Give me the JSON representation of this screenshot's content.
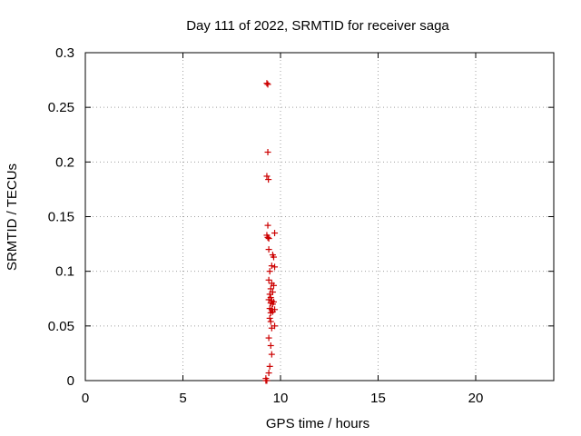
{
  "chart_data": {
    "type": "scatter",
    "title": "Day 111 of 2022, SRMTID for receiver saga",
    "xlabel": "GPS time / hours",
    "ylabel": "SRMTID / TECUs",
    "xlim": [
      0,
      24
    ],
    "ylim": [
      0,
      0.3
    ],
    "xticks": [
      0,
      5,
      10,
      15,
      20
    ],
    "xtick_labels": [
      "0",
      "5",
      "10",
      "15",
      "20"
    ],
    "yticks": [
      0,
      0.05,
      0.1,
      0.15,
      0.2,
      0.25,
      0.3
    ],
    "ytick_labels": [
      "0",
      "0.05",
      "0.1",
      "0.15",
      "0.2",
      "0.25",
      "0.3"
    ],
    "grid": true,
    "marker": "+",
    "color": "#cc0000",
    "points": [
      {
        "x": 9.3,
        "y": 0.272
      },
      {
        "x": 9.35,
        "y": 0.271
      },
      {
        "x": 9.35,
        "y": 0.209
      },
      {
        "x": 9.3,
        "y": 0.187
      },
      {
        "x": 9.38,
        "y": 0.184
      },
      {
        "x": 9.35,
        "y": 0.142
      },
      {
        "x": 9.3,
        "y": 0.133
      },
      {
        "x": 9.35,
        "y": 0.131
      },
      {
        "x": 9.4,
        "y": 0.13
      },
      {
        "x": 9.7,
        "y": 0.135
      },
      {
        "x": 9.4,
        "y": 0.12
      },
      {
        "x": 9.6,
        "y": 0.115
      },
      {
        "x": 9.65,
        "y": 0.113
      },
      {
        "x": 9.55,
        "y": 0.105
      },
      {
        "x": 9.7,
        "y": 0.104
      },
      {
        "x": 9.45,
        "y": 0.1
      },
      {
        "x": 9.4,
        "y": 0.092
      },
      {
        "x": 9.55,
        "y": 0.089
      },
      {
        "x": 9.65,
        "y": 0.087
      },
      {
        "x": 9.5,
        "y": 0.084
      },
      {
        "x": 9.6,
        "y": 0.081
      },
      {
        "x": 9.45,
        "y": 0.079
      },
      {
        "x": 9.5,
        "y": 0.076
      },
      {
        "x": 9.4,
        "y": 0.074
      },
      {
        "x": 9.55,
        "y": 0.073
      },
      {
        "x": 9.65,
        "y": 0.072
      },
      {
        "x": 9.5,
        "y": 0.071
      },
      {
        "x": 9.6,
        "y": 0.07
      },
      {
        "x": 9.45,
        "y": 0.066
      },
      {
        "x": 9.55,
        "y": 0.065
      },
      {
        "x": 9.7,
        "y": 0.065
      },
      {
        "x": 9.6,
        "y": 0.063
      },
      {
        "x": 9.5,
        "y": 0.062
      },
      {
        "x": 9.45,
        "y": 0.057
      },
      {
        "x": 9.5,
        "y": 0.054
      },
      {
        "x": 9.7,
        "y": 0.05
      },
      {
        "x": 9.55,
        "y": 0.048
      },
      {
        "x": 9.4,
        "y": 0.039
      },
      {
        "x": 9.5,
        "y": 0.032
      },
      {
        "x": 9.55,
        "y": 0.024
      },
      {
        "x": 9.45,
        "y": 0.013
      },
      {
        "x": 9.4,
        "y": 0.007
      },
      {
        "x": 9.25,
        "y": 0.002
      },
      {
        "x": 9.25,
        "y": 0.0
      },
      {
        "x": 9.3,
        "y": 0.0
      }
    ]
  }
}
